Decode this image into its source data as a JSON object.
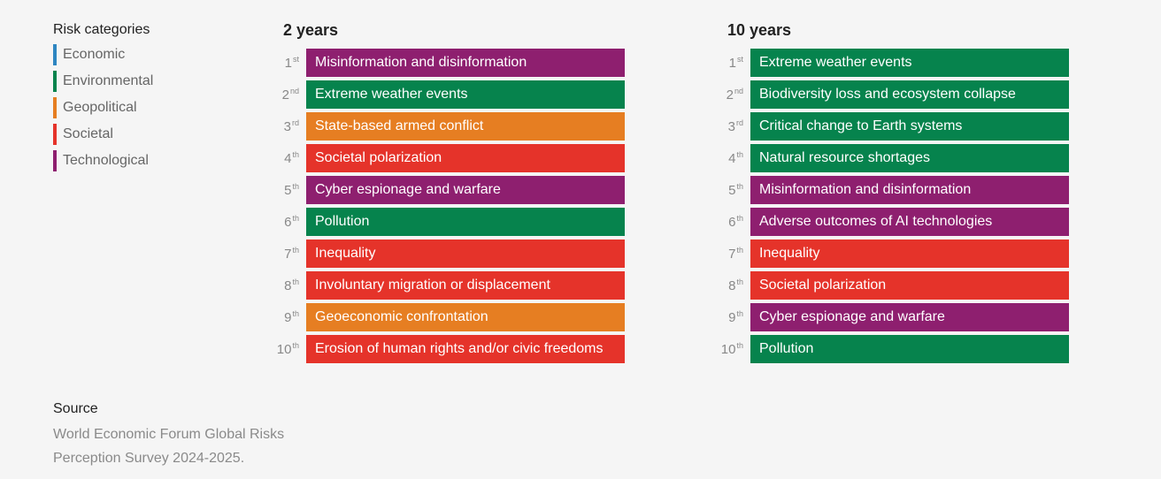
{
  "legend": {
    "title": "Risk categories",
    "items": [
      {
        "label": "Economic",
        "color": "#2e86c1"
      },
      {
        "label": "Environmental",
        "color": "#06834d"
      },
      {
        "label": "Geopolitical",
        "color": "#e67e22"
      },
      {
        "label": "Societal",
        "color": "#e5332a"
      },
      {
        "label": "Technological",
        "color": "#8e1f6f"
      }
    ]
  },
  "columns": [
    {
      "title": "2 years",
      "rows": [
        {
          "rank": "1",
          "suffix": "st",
          "label": "Misinformation and disinformation",
          "category": "Technological",
          "color": "#8e1f6f"
        },
        {
          "rank": "2",
          "suffix": "nd",
          "label": "Extreme weather events",
          "category": "Environmental",
          "color": "#06834d"
        },
        {
          "rank": "3",
          "suffix": "rd",
          "label": "State-based armed conflict",
          "category": "Geopolitical",
          "color": "#e67e22"
        },
        {
          "rank": "4",
          "suffix": "th",
          "label": "Societal polarization",
          "category": "Societal",
          "color": "#e5332a"
        },
        {
          "rank": "5",
          "suffix": "th",
          "label": "Cyber espionage and warfare",
          "category": "Technological",
          "color": "#8e1f6f"
        },
        {
          "rank": "6",
          "suffix": "th",
          "label": "Pollution",
          "category": "Environmental",
          "color": "#06834d"
        },
        {
          "rank": "7",
          "suffix": "th",
          "label": "Inequality",
          "category": "Societal",
          "color": "#e5332a"
        },
        {
          "rank": "8",
          "suffix": "th",
          "label": "Involuntary migration or displacement",
          "category": "Societal",
          "color": "#e5332a"
        },
        {
          "rank": "9",
          "suffix": "th",
          "label": "Geoeconomic confrontation",
          "category": "Geopolitical",
          "color": "#e67e22"
        },
        {
          "rank": "10",
          "suffix": "th",
          "label": "Erosion of human rights and/or civic freedoms",
          "category": "Societal",
          "color": "#e5332a"
        }
      ]
    },
    {
      "title": "10 years",
      "rows": [
        {
          "rank": "1",
          "suffix": "st",
          "label": "Extreme weather events",
          "category": "Environmental",
          "color": "#06834d"
        },
        {
          "rank": "2",
          "suffix": "nd",
          "label": "Biodiversity loss and ecosystem collapse",
          "category": "Environmental",
          "color": "#06834d"
        },
        {
          "rank": "3",
          "suffix": "rd",
          "label": "Critical change to Earth systems",
          "category": "Environmental",
          "color": "#06834d"
        },
        {
          "rank": "4",
          "suffix": "th",
          "label": "Natural resource shortages",
          "category": "Environmental",
          "color": "#06834d"
        },
        {
          "rank": "5",
          "suffix": "th",
          "label": "Misinformation and disinformation",
          "category": "Technological",
          "color": "#8e1f6f"
        },
        {
          "rank": "6",
          "suffix": "th",
          "label": "Adverse outcomes of AI technologies",
          "category": "Technological",
          "color": "#8e1f6f"
        },
        {
          "rank": "7",
          "suffix": "th",
          "label": "Inequality",
          "category": "Societal",
          "color": "#e5332a"
        },
        {
          "rank": "8",
          "suffix": "th",
          "label": "Societal polarization",
          "category": "Societal",
          "color": "#e5332a"
        },
        {
          "rank": "9",
          "suffix": "th",
          "label": "Cyber espionage and warfare",
          "category": "Technological",
          "color": "#8e1f6f"
        },
        {
          "rank": "10",
          "suffix": "th",
          "label": "Pollution",
          "category": "Environmental",
          "color": "#06834d"
        }
      ]
    }
  ],
  "source": {
    "title": "Source",
    "text": "World Economic Forum Global Risks Perception Survey 2024-2025."
  }
}
